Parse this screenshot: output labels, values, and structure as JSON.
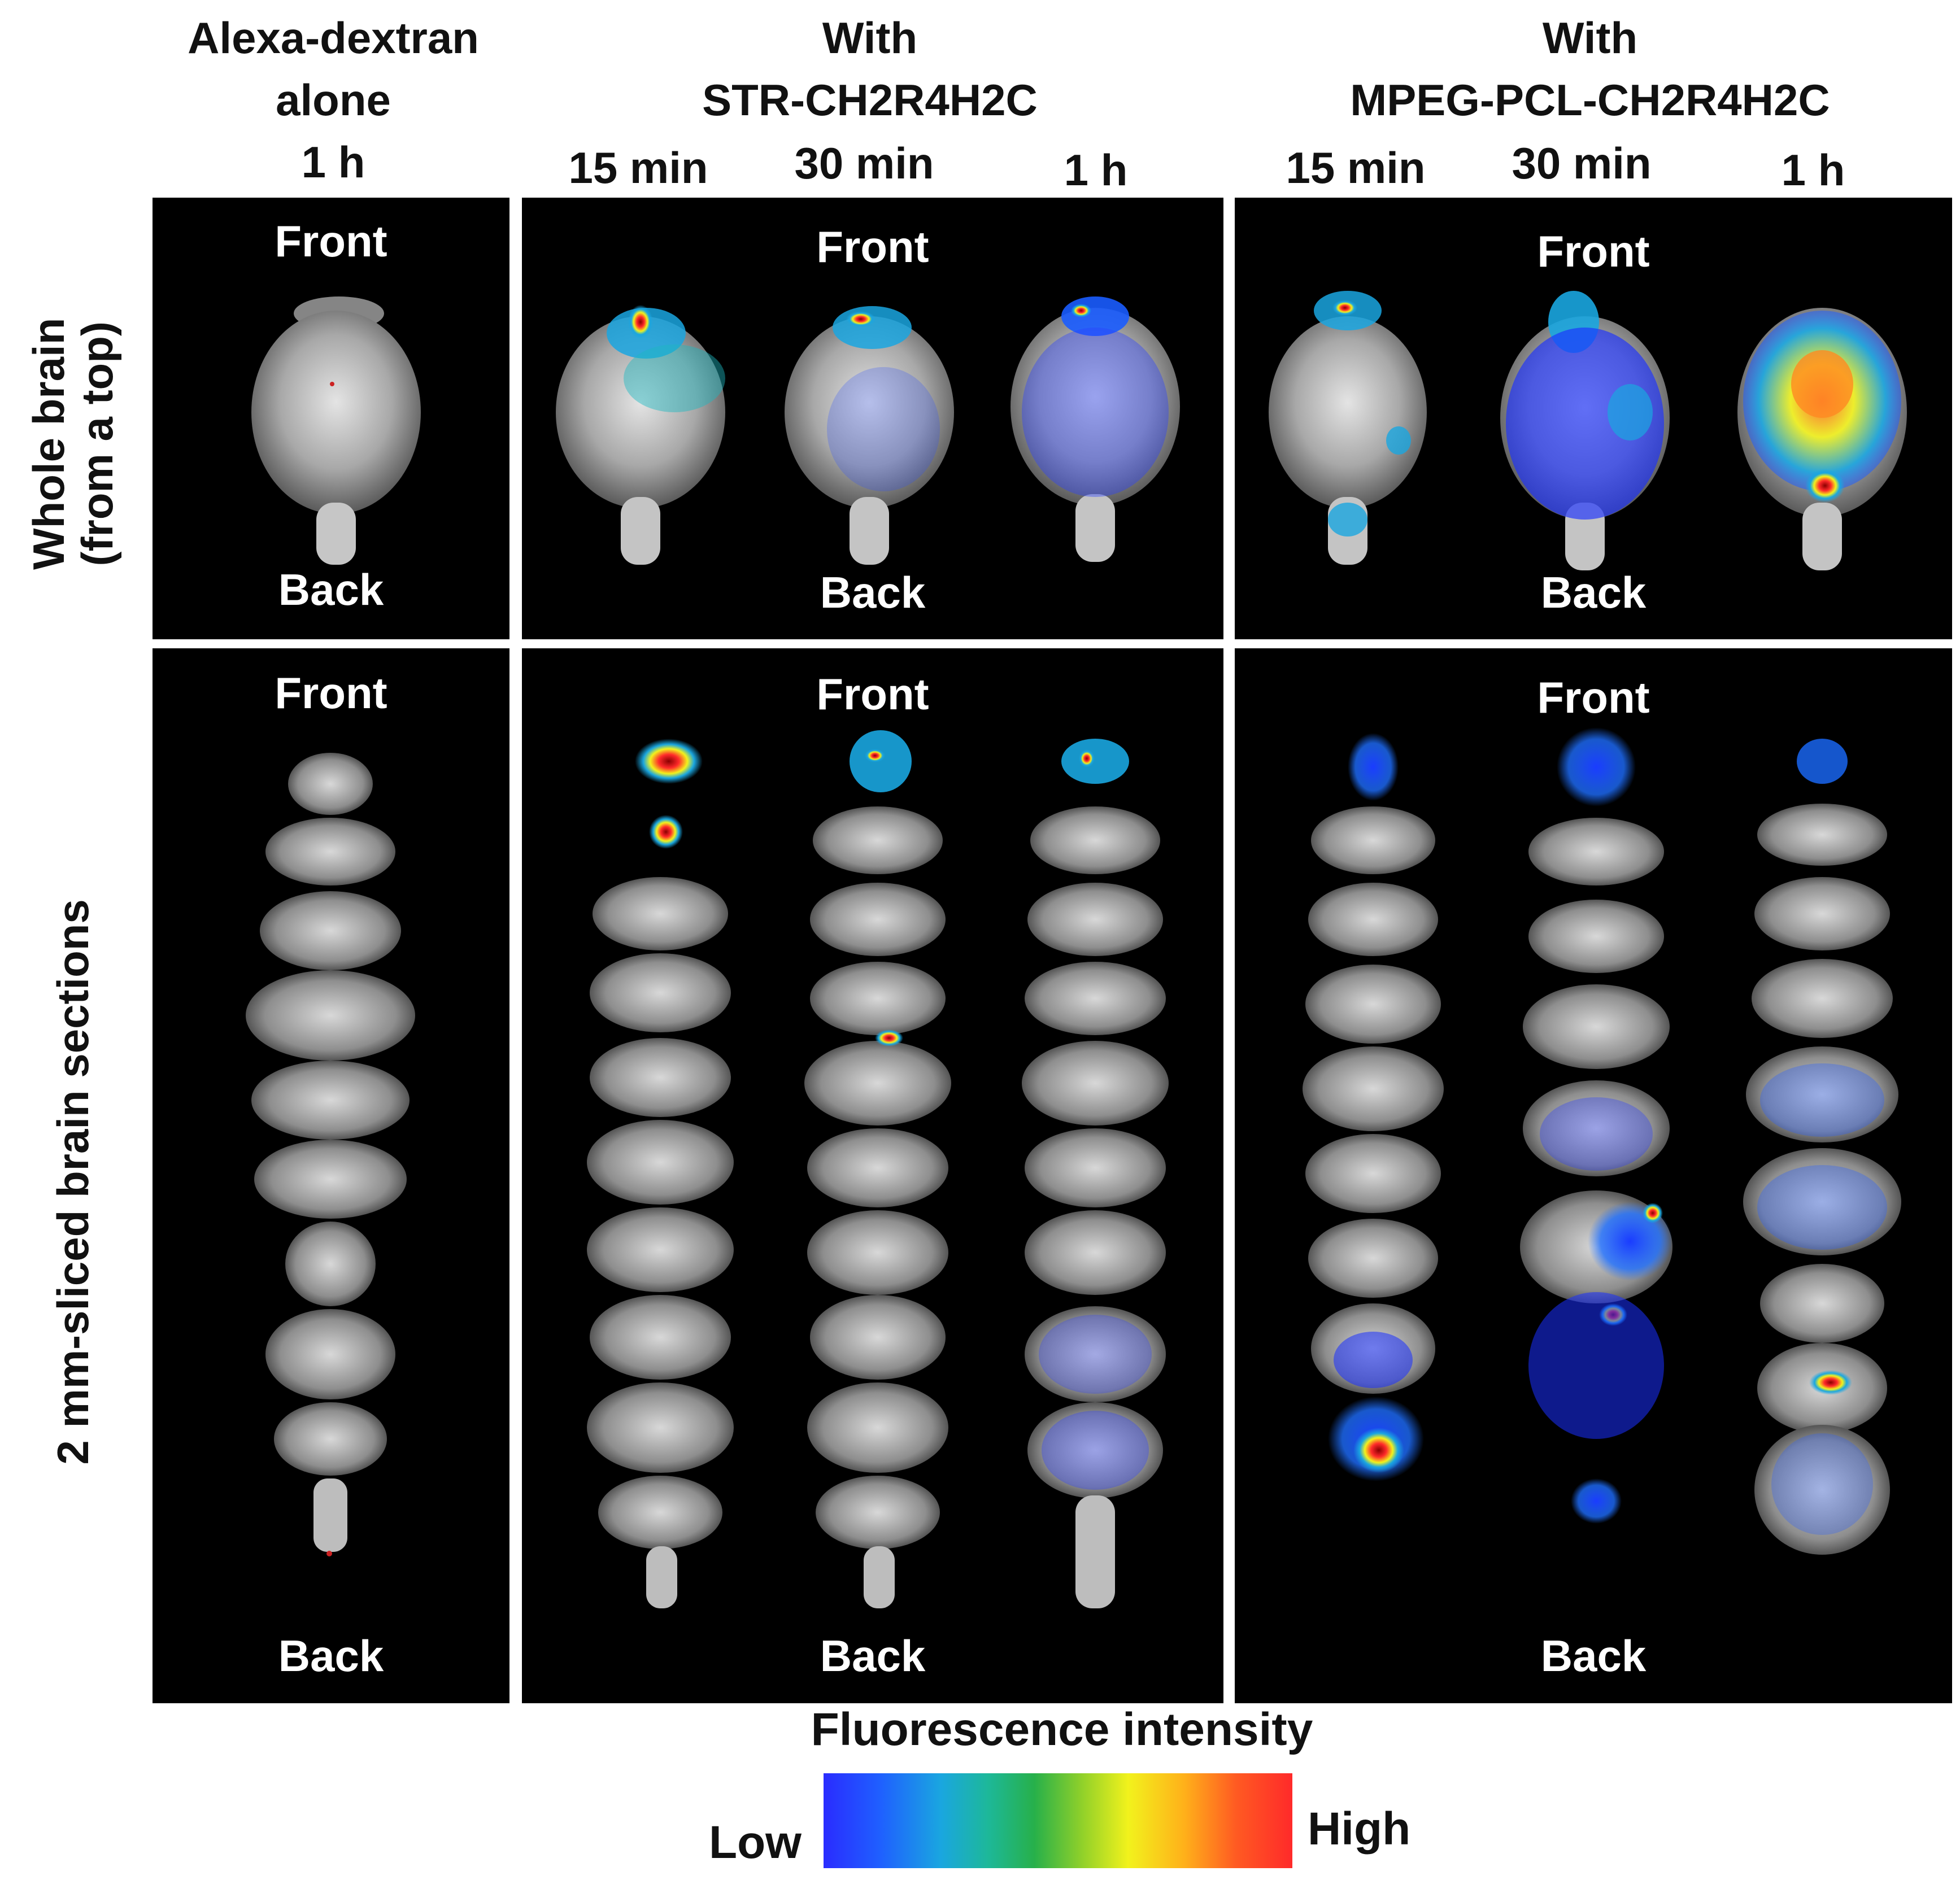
{
  "columns": {
    "group1": {
      "lines": [
        "Alexa-dextran",
        "alone",
        "1 h"
      ]
    },
    "group2": {
      "lines": [
        "With",
        "STR-CH2R4H2C"
      ],
      "times": [
        "15 min",
        "30 min",
        "1 h"
      ]
    },
    "group3": {
      "lines": [
        "With",
        "MPEG-PCL-CH2R4H2C"
      ],
      "times": [
        "15 min",
        "30 min",
        "1 h"
      ]
    }
  },
  "rows": {
    "row1": {
      "lines": [
        "Whole brain",
        "(from a top)"
      ]
    },
    "row2": {
      "lines": [
        "2 mm-sliced brain sections"
      ]
    }
  },
  "panel_labels": {
    "front": "Front",
    "back": "Back"
  },
  "colorbar": {
    "title": "Fluorescence intensity",
    "low": "Low",
    "high": "High",
    "colors": [
      "#2a2cff",
      "#1aa6e0",
      "#27b04a",
      "#f2f21c",
      "#ff5a22",
      "#ff2a2a"
    ]
  },
  "colors": {
    "panel_bg": "#000000",
    "label_text": "#ffffff",
    "header_text": "#111111"
  }
}
